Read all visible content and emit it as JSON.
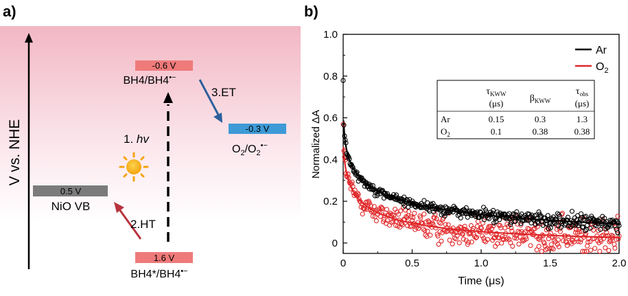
{
  "panel_a": {
    "label": "a)",
    "ylabel": "V vs. NHE",
    "levels": [
      {
        "key": "bh4_top",
        "value": "-0.6 V",
        "name": "BH4/BH4",
        "suffix": "•−",
        "color": "#ef7a7a"
      },
      {
        "key": "o2",
        "value": "-0.3 V",
        "name": "O",
        "color": "#3d9ad6"
      },
      {
        "key": "nio",
        "value": "0.5 V",
        "name": "NiO VB",
        "color": "#7b7b7b"
      },
      {
        "key": "bh4_bottom",
        "value": "1.6 V",
        "name": "BH4*/BH4",
        "suffix": "•−",
        "color": "#ef7a7a"
      }
    ],
    "o2_label": {
      "a": "O",
      "b": "2",
      "c": "/O",
      "d": "2",
      "e": "•−"
    },
    "steps": {
      "hv_num": "1.",
      "hv": "hv",
      "ht": "2.HT",
      "et": "3.ET"
    },
    "colors": {
      "gradient_top": "#f2b7c4",
      "ht_arrow": "#b8343d",
      "et_arrow": "#2c5f9c",
      "sun": "#f7b21a"
    }
  },
  "chart_data": {
    "type": "scatter",
    "panel_label": "b)",
    "xlabel": "Time (μs)",
    "ylabel": "Normalized ΔA",
    "xlim": [
      0,
      2.0
    ],
    "ylim": [
      -0.05,
      1.0
    ],
    "xticks": [
      "0",
      "0.5",
      "1.0",
      "1.5",
      "2.0"
    ],
    "yticks": [
      "0",
      "0.2",
      "0.4",
      "0.6",
      "0.8",
      "1.0"
    ],
    "grid": false,
    "legend_position": "top-right",
    "series": [
      {
        "name": "Ar",
        "color": "#000000",
        "marker": "open-circle",
        "fit": {
          "model": "stretched-exponential",
          "tau_us": 0.15,
          "beta": 0.3,
          "amplitude": 0.8
        },
        "x_range": [
          0,
          2.0
        ],
        "noise_sd": 0.025
      },
      {
        "name": "O",
        "subscript": "2",
        "color": "#e0282a",
        "marker": "open-circle",
        "fit": {
          "model": "stretched-exponential",
          "tau_us": 0.1,
          "beta": 0.38,
          "amplitude": 0.6
        },
        "x_range": [
          0,
          2.0
        ],
        "noise_sd": 0.06
      }
    ],
    "table": {
      "headers": [
        {
          "sym": "τ",
          "sub": "KWW",
          "unit": "(μs)"
        },
        {
          "sym": "β",
          "sub": "KWW",
          "unit": ""
        },
        {
          "sym": "τ",
          "sub": "obs",
          "unit": "(μs)"
        }
      ],
      "rows": [
        {
          "label": "Ar",
          "label_sub": "",
          "values": [
            "0.15",
            "0.3",
            "1.3"
          ]
        },
        {
          "label": "O",
          "label_sub": "2",
          "values": [
            "0.1",
            "0.38",
            "0.38"
          ]
        }
      ]
    }
  }
}
